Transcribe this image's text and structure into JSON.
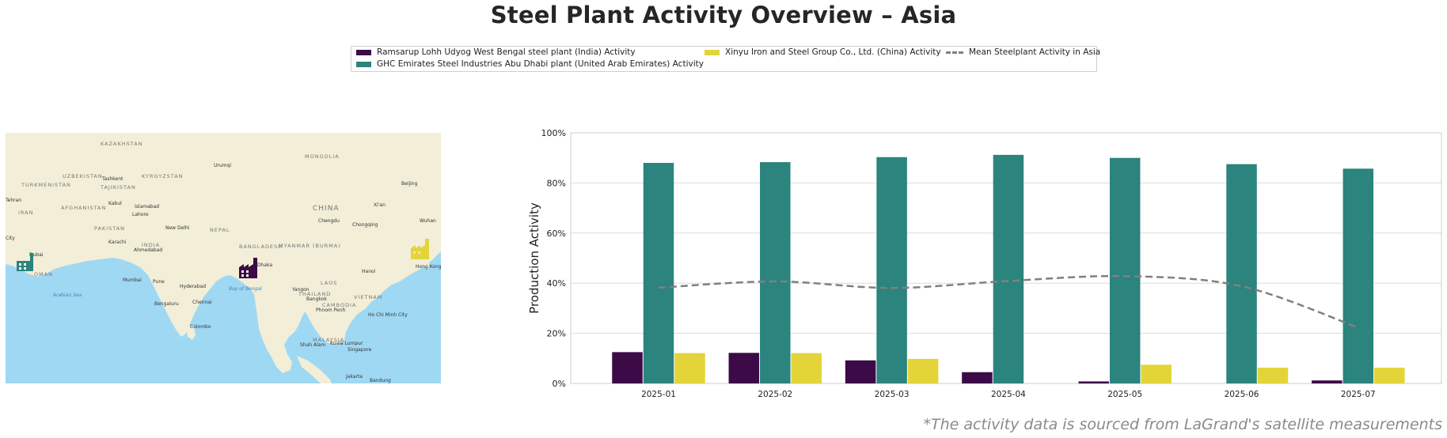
{
  "title": "Steel Plant Activity Overview – Asia",
  "colors": {
    "india": "#3b0a47",
    "uae": "#2b847d",
    "china": "#e3d43a",
    "mean": "#808080",
    "sea": "#9fd8f3",
    "land": "#f2eed8"
  },
  "legend": {
    "india": "Ramsarup Lohh Udyog West Bengal steel plant (India) Activity",
    "uae": "GHC Emirates Steel Industries Abu Dhabi plant (United Arab Emirates) Activity",
    "china": "Xinyu Iron and Steel Group Co., Ltd. (China) Activity",
    "mean": "Mean Steelplant Activity in Asia"
  },
  "map": {
    "labels": [
      "KAZAKHSTAN",
      "MONGOLIA",
      "UZBEKISTAN",
      "KYRGYZSTAN",
      "TURKMENISTAN",
      "TAJIKISTAN",
      "Tashkent",
      "Urumqi",
      "Beijing",
      "Kabul",
      "AFGHANISTAN",
      "Islamabad",
      "Lahore",
      "IRAN",
      "Tehran",
      "CHINA",
      "Chengdu",
      "Chongqing",
      "Xi'an",
      "Wuhan",
      "PAKISTAN",
      "New Delhi",
      "NEPAL",
      "INDIA",
      "Karachi",
      "Ahmedabad",
      "Dubai",
      "OMAN",
      "City",
      "BANGLADESH",
      "Dhaka",
      "MYANMAR (BURMA)",
      "Hanoi",
      "Hong Kong",
      "Mumbai",
      "Pune",
      "Hyderabad",
      "Bay of Bengal",
      "Arabian Sea",
      "Yangon",
      "THAILAND",
      "LAOS",
      "Bangkok",
      "VIETNAM",
      "Chennai",
      "Bengaluru",
      "CAMBODIA",
      "Phnom Penh",
      "Ho Chi Minh City",
      "Colombo",
      "MALAYSIA",
      "Kuala Lumpur",
      "Shah Alam",
      "Singapore",
      "Jakarta",
      "Bandung"
    ]
  },
  "chart_data": {
    "type": "bar",
    "title": "Steel Plant Activity Overview – Asia",
    "xlabel": "",
    "ylabel": "Production Activity",
    "categories": [
      "2025-01",
      "2025-02",
      "2025-03",
      "2025-04",
      "2025-05",
      "2025-06",
      "2025-07"
    ],
    "series": [
      {
        "name": "Ramsarup Lohh Udyog West Bengal steel plant (India) Activity",
        "color": "#3b0a47",
        "values": [
          12.5,
          12.2,
          9.2,
          4.5,
          0.8,
          0.0,
          1.2
        ]
      },
      {
        "name": "GHC Emirates Steel Industries Abu Dhabi plant (United Arab Emirates) Activity",
        "color": "#2b847d",
        "values": [
          88.0,
          88.3,
          90.3,
          91.2,
          90.0,
          87.5,
          85.7
        ]
      },
      {
        "name": "Xinyu Iron and Steel Group Co., Ltd. (China) Activity",
        "color": "#e3d43a",
        "values": [
          12.1,
          12.1,
          9.8,
          0.0,
          7.5,
          6.3,
          6.3
        ]
      }
    ],
    "mean_line": {
      "name": "Mean Steelplant Activity in Asia",
      "style": "dashed",
      "color": "#808080",
      "values": [
        38.2,
        40.7,
        38.1,
        40.9,
        42.8,
        38.8,
        22.3
      ]
    },
    "ylim": [
      0,
      100
    ],
    "yticks": [
      "0%",
      "20%",
      "40%",
      "60%",
      "80%",
      "100%"
    ],
    "grid": "horizontal",
    "legend_position": "top-center"
  },
  "footnote": "*The activity data is sourced from LaGrand's satellite measurements"
}
